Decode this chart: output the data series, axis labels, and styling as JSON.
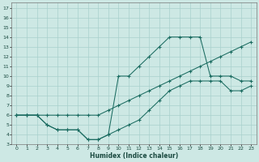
{
  "title": "",
  "xlabel": "Humidex (Indice chaleur)",
  "bg_color": "#cde8e4",
  "grid_color": "#a8d0cc",
  "line_color": "#1a6b60",
  "xlim": [
    -0.5,
    23.5
  ],
  "ylim": [
    3,
    17.5
  ],
  "xticks": [
    0,
    1,
    2,
    3,
    4,
    5,
    6,
    7,
    8,
    9,
    10,
    11,
    12,
    13,
    14,
    15,
    16,
    17,
    18,
    19,
    20,
    21,
    22,
    23
  ],
  "yticks": [
    3,
    4,
    5,
    6,
    7,
    8,
    9,
    10,
    11,
    12,
    13,
    14,
    15,
    16,
    17
  ],
  "line1_x": [
    0,
    1,
    2,
    3,
    4,
    5,
    6,
    7,
    8,
    9,
    10,
    11,
    12,
    13,
    14,
    15,
    16,
    17,
    18,
    19,
    20,
    21,
    22,
    23
  ],
  "line1_y": [
    6,
    6,
    6,
    5,
    4.5,
    4.5,
    4.5,
    3.5,
    3.5,
    4,
    10,
    10,
    11,
    12,
    13,
    14,
    14,
    14,
    14,
    10,
    10,
    10,
    9.5,
    9.5
  ],
  "line2_x": [
    0,
    1,
    2,
    3,
    4,
    5,
    6,
    7,
    8,
    9,
    10,
    11,
    12,
    13,
    14,
    15,
    16,
    17,
    18,
    19,
    20,
    21,
    22,
    23
  ],
  "line2_y": [
    6,
    6,
    6,
    5,
    4.5,
    4.5,
    4.5,
    3.5,
    3.5,
    4,
    4.5,
    5,
    5.5,
    6.5,
    7.5,
    8.5,
    9,
    9.5,
    9.5,
    9.5,
    9.5,
    8.5,
    8.5,
    9
  ],
  "line3_x": [
    0,
    1,
    2,
    3,
    4,
    5,
    6,
    7,
    8,
    9,
    10,
    11,
    12,
    13,
    14,
    15,
    16,
    17,
    18,
    19,
    20,
    21,
    22,
    23
  ],
  "line3_y": [
    6,
    6,
    6,
    6,
    6,
    6,
    6,
    6,
    6,
    6.5,
    7,
    7.5,
    8,
    8.5,
    9,
    9.5,
    10,
    10.5,
    11,
    11.5,
    12,
    12.5,
    13,
    13.5
  ]
}
